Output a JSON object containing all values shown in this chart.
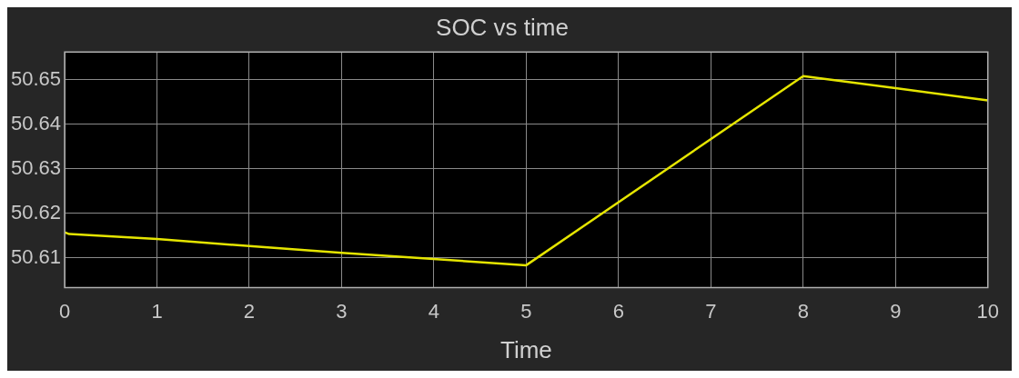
{
  "chart_data": {
    "type": "line",
    "title": "SOC vs time",
    "xlabel": "Time",
    "x": [
      0,
      0.05,
      1,
      2,
      3,
      5,
      8,
      9,
      10
    ],
    "series": [
      {
        "color": "#e5e500",
        "values": [
          50.6157,
          50.6153,
          50.6142,
          50.6126,
          50.6111,
          50.6083,
          50.6508,
          50.6481,
          50.6453
        ]
      }
    ],
    "xlim": [
      0,
      10
    ],
    "xticks": [
      0,
      1,
      2,
      3,
      4,
      5,
      6,
      7,
      8,
      9,
      10
    ],
    "ylim": [
      50.6033,
      50.6562
    ],
    "yticks": [
      50.61,
      50.62,
      50.63,
      50.64,
      50.65
    ],
    "grid": true,
    "legend": false,
    "marker": "none",
    "line_style": "solid"
  }
}
